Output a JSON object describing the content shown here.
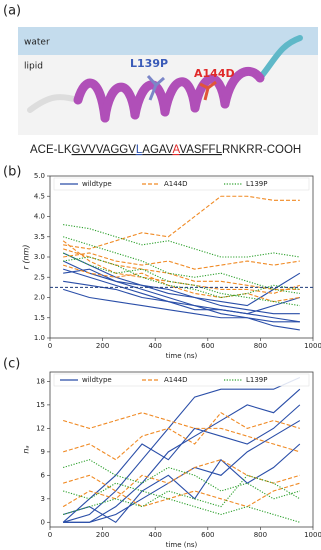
{
  "panel_labels": [
    "(a)",
    "(b)",
    "(c)"
  ],
  "panel_a": {
    "water": "water",
    "lipid": "lipid",
    "mutation_1": "L139P",
    "mutation_2": "A144D",
    "sequence": {
      "prefix": "ACE-LK",
      "core_1": "GVVVAGGV",
      "mut_1": "L",
      "core_2": "AGAV",
      "mut_2": "A",
      "core_3": "VASFFL",
      "suffix": "RNKRR-COOH"
    }
  },
  "chart_data": [
    {
      "type": "line",
      "xlabel": "time (ns)",
      "ylabel": "r (nm)",
      "legend": "top",
      "xlim": [
        0,
        1000
      ],
      "xticks": [
        0,
        200,
        400,
        600,
        800,
        1000
      ],
      "ylim": [
        1.0,
        5.0
      ],
      "yticks": [
        {
          "value": 1.0,
          "label": "1.0"
        },
        1.5,
        {
          "value": 2.0,
          "label": "2.0"
        },
        2.5,
        {
          "value": 3.0,
          "label": "3.0"
        },
        3.5,
        {
          "value": 4.0,
          "label": "4.0"
        },
        4.5,
        {
          "value": 5.0,
          "label": "5.0"
        }
      ],
      "reference_line": 2.25,
      "x": [
        50,
        150,
        250,
        350,
        450,
        550,
        650,
        750,
        850,
        950
      ],
      "series": [
        {
          "name": "wildtype",
          "color": "#2a4ea8",
          "style": "solid",
          "runs": [
            [
              2.9,
              2.6,
              2.4,
              2.2,
              2.0,
              1.8,
              1.7,
              1.6,
              1.5,
              1.4
            ],
            [
              2.7,
              2.5,
              2.3,
              2.1,
              1.9,
              1.8,
              1.6,
              1.5,
              1.3,
              1.2
            ],
            [
              2.4,
              2.3,
              2.2,
              2.0,
              1.9,
              1.7,
              1.7,
              1.6,
              1.8,
              2.0
            ],
            [
              3.1,
              2.8,
              2.5,
              2.3,
              2.1,
              2.0,
              1.9,
              1.8,
              2.2,
              2.6
            ],
            [
              2.2,
              2.0,
              1.9,
              1.8,
              1.7,
              1.6,
              1.5,
              1.5,
              1.4,
              1.4
            ],
            [
              2.6,
              2.7,
              2.4,
              2.3,
              2.2,
              2.0,
              1.8,
              1.7,
              1.6,
              1.6
            ]
          ]
        },
        {
          "name": "A144D",
          "color": "#f08a24",
          "style": "dashed",
          "runs": [
            [
              3.3,
              3.2,
              3.4,
              3.6,
              3.5,
              4.0,
              4.5,
              4.5,
              4.4,
              4.4
            ],
            [
              3.0,
              3.1,
              2.9,
              2.8,
              2.9,
              2.7,
              2.8,
              2.9,
              2.8,
              2.9
            ],
            [
              3.4,
              2.9,
              2.6,
              2.5,
              2.4,
              2.3,
              2.2,
              2.2,
              2.1,
              2.3
            ],
            [
              2.8,
              2.6,
              2.5,
              2.6,
              2.3,
              2.1,
              2.0,
              2.1,
              1.9,
              2.0
            ],
            [
              3.2,
              3.0,
              2.8,
              2.7,
              2.6,
              2.4,
              2.4,
              2.3,
              2.2,
              2.2
            ]
          ]
        },
        {
          "name": "L139P",
          "color": "#2ca02c",
          "style": "dotted",
          "runs": [
            [
              3.8,
              3.7,
              3.5,
              3.3,
              3.4,
              3.2,
              3.0,
              3.0,
              3.1,
              3.0
            ],
            [
              3.5,
              3.3,
              3.1,
              2.9,
              2.6,
              2.5,
              2.6,
              2.4,
              2.2,
              2.1
            ],
            [
              3.1,
              2.8,
              2.6,
              2.7,
              2.4,
              2.3,
              2.1,
              2.0,
              1.9,
              1.8
            ],
            [
              2.9,
              3.0,
              2.8,
              2.5,
              2.3,
              2.2,
              2.0,
              2.1,
              2.3,
              2.2
            ]
          ]
        }
      ]
    },
    {
      "type": "line",
      "xlabel": "time (ns)",
      "ylabel": "nₐ",
      "legend": "top",
      "xlim": [
        0,
        1000
      ],
      "xticks": [
        0,
        200,
        400,
        600,
        800,
        1000
      ],
      "ylim": [
        -0.6,
        19.2
      ],
      "yticks": [
        0,
        3,
        6,
        9,
        12,
        15,
        18
      ],
      "x": [
        50,
        150,
        250,
        350,
        450,
        550,
        650,
        750,
        850,
        950
      ],
      "series": [
        {
          "name": "wildtype",
          "color": "#2a4ea8",
          "style": "solid",
          "runs": [
            [
              0,
              1,
              4,
              8,
              12,
              16,
              17,
              17,
              17,
              18.5
            ],
            [
              0,
              0,
              2,
              5,
              9,
              11,
              13,
              15,
              14,
              17
            ],
            [
              0,
              3,
              6,
              10,
              8,
              12,
              11,
              10,
              12,
              15
            ],
            [
              0,
              0,
              1,
              3,
              5,
              7,
              6,
              9,
              11,
              13
            ],
            [
              1,
              2,
              0,
              4,
              6,
              3,
              8,
              5,
              7,
              10
            ]
          ]
        },
        {
          "name": "A144D",
          "color": "#f08a24",
          "style": "dashed",
          "runs": [
            [
              13,
              12,
              13,
              14,
              13,
              12,
              12,
              11,
              10,
              9
            ],
            [
              9,
              10,
              8,
              11,
              12,
              10,
              14,
              12,
              13,
              12
            ],
            [
              2,
              4,
              3,
              6,
              5,
              7,
              8,
              6,
              5,
              6
            ],
            [
              5,
              6,
              4,
              2,
              3,
              4,
              3,
              2,
              4,
              5
            ]
          ]
        },
        {
          "name": "L139P",
          "color": "#2ca02c",
          "style": "dotted",
          "runs": [
            [
              7,
              8,
              6,
              5,
              7,
              6,
              4,
              5,
              3,
              4
            ],
            [
              1,
              2,
              3,
              2,
              4,
              3,
              2,
              6,
              5,
              3
            ],
            [
              4,
              3,
              5,
              4,
              3,
              2,
              1,
              2,
              1,
              0
            ]
          ]
        }
      ]
    }
  ]
}
